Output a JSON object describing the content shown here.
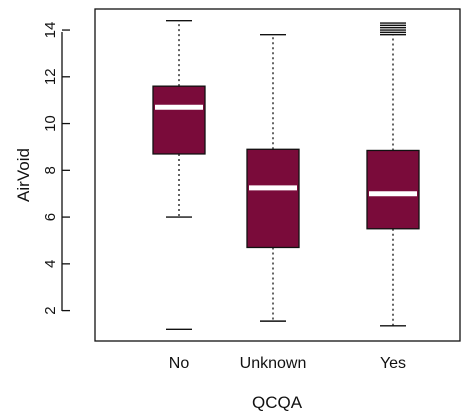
{
  "chart_data": {
    "type": "boxplot",
    "xlabel": "QCQA",
    "ylabel": "AirVoid",
    "ylim": [
      0.7,
      14.9
    ],
    "yticks": [
      2,
      4,
      6,
      8,
      10,
      12,
      14
    ],
    "ytick_labels": [
      "2",
      "4",
      "6",
      "8",
      "10",
      "12",
      "14"
    ],
    "categories": [
      "No",
      "Unknown",
      "Yes"
    ],
    "box_color": "#7a0b3a",
    "median_color": "#ffffff",
    "grid": false,
    "legend": "none",
    "boxes": [
      {
        "category": "No",
        "whisker_low": 6.0,
        "q1": 8.7,
        "median": 10.7,
        "q3": 11.6,
        "whisker_high": 14.4,
        "outliers": [
          1.2
        ]
      },
      {
        "category": "Unknown",
        "whisker_low": 1.55,
        "q1": 4.7,
        "median": 7.25,
        "q3": 8.9,
        "whisker_high": 13.8,
        "outliers": []
      },
      {
        "category": "Yes",
        "whisker_low": 1.35,
        "q1": 5.5,
        "median": 7.0,
        "q3": 8.85,
        "whisker_high": 13.8,
        "outliers": [
          13.9,
          14.0,
          14.1,
          14.2,
          14.3
        ]
      }
    ]
  }
}
